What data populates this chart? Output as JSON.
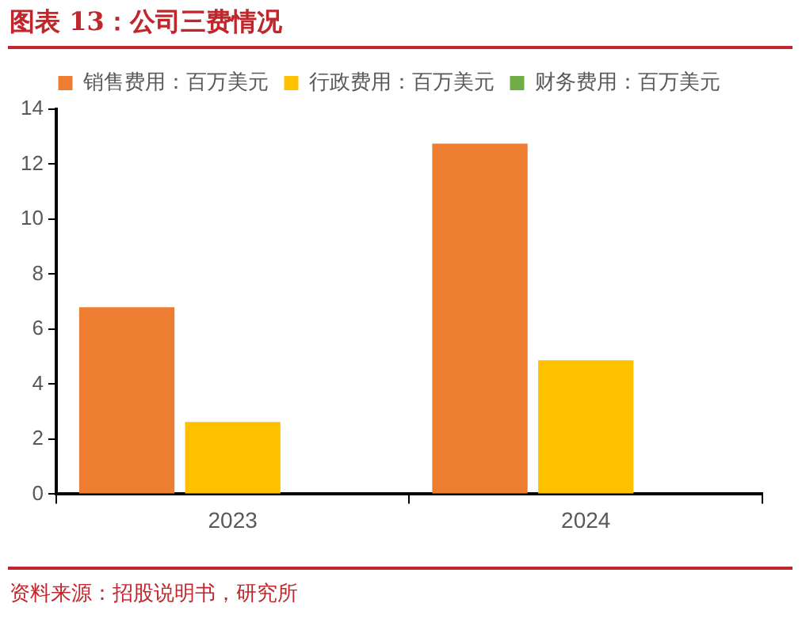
{
  "chart_data": {
    "type": "bar",
    "title": "图表 13：公司三费情况",
    "categories": [
      "2023",
      "2024"
    ],
    "series": [
      {
        "name": "销售费用：百万美元",
        "color": "#ed7d31",
        "values": [
          6.8,
          12.75
        ]
      },
      {
        "name": "行政费用：百万美元",
        "color": "#ffc000",
        "values": [
          2.62,
          4.87
        ]
      },
      {
        "name": "财务费用：百万美元",
        "color": "#70ad47",
        "values": [
          0,
          0
        ]
      }
    ],
    "ylim": [
      0,
      14
    ],
    "yticks": [
      0,
      2,
      4,
      6,
      8,
      10,
      12,
      14
    ],
    "grid": false,
    "legend": "top",
    "annotations": [
      "资料来源：招股说明书，研究所"
    ]
  }
}
